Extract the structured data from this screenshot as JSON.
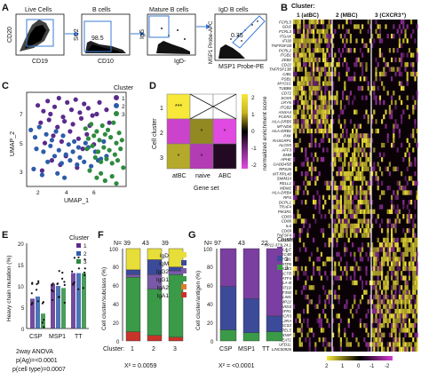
{
  "figure": {
    "panels": {
      "A": "A",
      "B": "B",
      "C": "C",
      "D": "D",
      "E": "E",
      "F": "F",
      "G": "G"
    }
  },
  "panel_a": {
    "gates": [
      {
        "title": "Live Cells",
        "xlabel": "CD19",
        "ylabel": "CD20",
        "value": ""
      },
      {
        "title": "B cells",
        "xlabel": "CD10",
        "ylabel": "SC2",
        "value": "98.5"
      },
      {
        "title": "Mature B cells",
        "xlabel": "IgD-",
        "ylabel": "IgG",
        "value": ""
      },
      {
        "title": "IgD B cells",
        "xlabel": "MSP1 Probe-PE",
        "ylabel": "MSP1 Probe-APC",
        "value": "0.35"
      }
    ]
  },
  "panel_b": {
    "title": "Cluster:",
    "clusters": [
      "1 (atBC)",
      "2 (MBC)",
      "3 (CXCR3⁺)"
    ],
    "genes": [
      "FCRL5",
      "GDI2",
      "FCRL3",
      "ITGAX",
      "IFI30",
      "TNFRSF1B",
      "PCRL2",
      "ITGB1",
      "ZEB2",
      "CD22",
      "TNFRSF13B",
      "CIB1",
      "PSB1",
      "MYO1C",
      "TUBB6",
      "CD72",
      "SOX5",
      "LRYN",
      "ITGB2",
      "ANXA4",
      "FCER2",
      "HLA-DRB5",
      "MT-ND6",
      "HLA-DRB1",
      "PXK",
      "RASGRP1",
      "ALOX5",
      "AFF3",
      "EMB",
      "APHE",
      "GADD45B",
      "RPS26",
      "MT-RPL40",
      "SMIM14",
      "RELL1",
      "MDM2",
      "HLA-DRB4",
      "RPS",
      "DCPL1",
      "TRAF4",
      "PIK3R1",
      "CD83",
      "CD86",
      "IL6",
      "CD69",
      "TNFSF4",
      "CCR7",
      "RP11-373L24.1",
      "HLA-E",
      "CLEC4B",
      "CLPTM1",
      "MT-ATP6",
      "TAS1R3",
      "ACTB",
      "ATF4",
      "HLA-B",
      "AT1D",
      "ZNF350",
      "PDLIM1",
      "PMP22",
      "PARD3",
      "FGFR1",
      "CXCR3",
      "IL2RA",
      "SOCS3",
      "YPEL5",
      "TXNIP",
      "NEAT1",
      "UFD1L",
      "LINC00926"
    ],
    "colorbar_labels": [
      "2",
      "1",
      "0",
      "-1",
      "-2"
    ]
  },
  "panel_c": {
    "xlabel": "UMAP_1",
    "ylabel": "UMAP_2",
    "legend_title": "Cluster",
    "xticks": [
      "2",
      "4",
      "6"
    ],
    "yticks": [
      "3",
      "5",
      "7"
    ],
    "xlim": [
      1.3,
      8.4
    ],
    "ylim": [
      1.8,
      8.3
    ],
    "colors": {
      "1": "#5a2a8c",
      "2": "#2e5ca8",
      "3": "#2e8b3e"
    }
  },
  "panel_d": {
    "ylabel": "Cell cluster",
    "xlabel": "Gene set",
    "colorbar_label": "normalized enrichment score",
    "row_labels": [
      "1",
      "2",
      "3"
    ],
    "col_labels": [
      "atBC",
      "naive",
      "ABC"
    ],
    "colorbar_ticks": [
      "2",
      "1",
      "0",
      "-1",
      "-2"
    ],
    "stars": [
      [
        "***",
        "",
        ""
      ],
      [
        "",
        "*",
        "*"
      ],
      [
        "*",
        "*",
        ""
      ]
    ]
  },
  "panel_e": {
    "ylabel": "Heavy chain mutation (%)",
    "yticks": [
      "0",
      "5",
      "10",
      "15",
      "20"
    ],
    "groups": [
      "CSP",
      "MSP1",
      "TT"
    ],
    "legend_title": "Cluster",
    "legend_items": [
      "1",
      "2",
      "3"
    ],
    "stats": [
      "2way ANOVA",
      "p(Ag)=<0.0001",
      "p(cell type)=0.0007"
    ]
  },
  "panel_f": {
    "ylabel": "Cell cluster/subclass (%)",
    "counts": [
      "N= 39",
      "43",
      "39"
    ],
    "xlabel": "Cluster:",
    "categories": [
      "1",
      "2",
      "3"
    ],
    "yticks": [
      "0",
      "20",
      "40",
      "60",
      "80",
      "100"
    ],
    "legend": [
      "IgD",
      "IgM",
      "IgG2",
      "IgG1",
      "IgA2",
      "IgA1"
    ],
    "stat": "X² = 0.0059"
  },
  "panel_g": {
    "ylabel": "Cell cluster/antigen (%)",
    "counts": [
      "N= 97",
      "43",
      "22"
    ],
    "categories": [
      "CSP",
      "MSP1",
      "TT"
    ],
    "yticks": [
      "0",
      "20",
      "40",
      "60",
      "80",
      "100"
    ],
    "legend_title": "Cluster",
    "legend": [
      "1",
      "2",
      "3"
    ],
    "stat": "X² = <0.0001"
  },
  "chart_data": [
    {
      "type": "scatter",
      "panel": "C",
      "xlabel": "UMAP_1",
      "ylabel": "UMAP_2",
      "xlim": [
        1.3,
        8.4
      ],
      "ylim": [
        1.8,
        8.3
      ],
      "series": [
        {
          "name": "1",
          "x": [
            2.1,
            2.5,
            2.8,
            3.0,
            3.3,
            3.6,
            3.9,
            4.2,
            4.5,
            4.8,
            5.1,
            5.4,
            5.7,
            6.0,
            2.3,
            2.9,
            3.5,
            4.0,
            4.6,
            5.2,
            5.8,
            6.3,
            2.6,
            3.2,
            3.8,
            4.4,
            5.0,
            5.6,
            6.5,
            7.0,
            3.1,
            4.1,
            5.3,
            2.4,
            3.7,
            4.9,
            6.1,
            7.2
          ],
          "y": [
            7.4,
            7.0,
            7.7,
            6.8,
            7.3,
            7.9,
            6.6,
            7.6,
            7.1,
            7.8,
            6.9,
            7.5,
            7.2,
            6.7,
            6.2,
            6.4,
            5.9,
            6.3,
            6.1,
            6.5,
            6.0,
            6.8,
            4.8,
            5.3,
            4.9,
            5.6,
            5.1,
            5.4,
            7.6,
            7.1,
            3.6,
            3.9,
            4.4,
            2.9,
            3.3,
            3.1,
            4.7,
            6.2
          ]
        },
        {
          "name": "2",
          "x": [
            1.6,
            1.9,
            2.2,
            2.7,
            3.1,
            3.4,
            3.9,
            4.3,
            4.7,
            5.0,
            5.5,
            2.0,
            2.5,
            3.0,
            3.6,
            4.1,
            4.6,
            5.1,
            5.7,
            6.2,
            6.6,
            2.8,
            3.3,
            3.8,
            4.4,
            4.9,
            5.4,
            5.9,
            6.4,
            7.0,
            1.8,
            2.4,
            3.5,
            4.0,
            6.8
          ],
          "y": [
            5.7,
            5.2,
            5.9,
            5.4,
            5.0,
            5.6,
            5.3,
            4.7,
            4.9,
            4.5,
            4.8,
            4.4,
            4.2,
            4.6,
            4.3,
            4.0,
            4.2,
            3.8,
            4.5,
            4.2,
            3.7,
            3.5,
            3.9,
            3.4,
            3.6,
            3.3,
            3.5,
            3.2,
            3.6,
            3.9,
            3.0,
            2.6,
            2.7,
            2.4,
            4.9
          ]
        },
        {
          "name": "3",
          "x": [
            5.5,
            5.9,
            6.3,
            6.7,
            7.1,
            7.5,
            7.9,
            5.7,
            6.1,
            6.5,
            6.9,
            7.3,
            7.7,
            8.1,
            5.6,
            6.0,
            6.4,
            6.8,
            7.2,
            7.6,
            8.0,
            6.2,
            6.6,
            7.0,
            7.4,
            7.8,
            5.8,
            6.6,
            7.4,
            8.2,
            6.9,
            7.7,
            6.3
          ],
          "y": [
            5.8,
            6.1,
            5.6,
            6.0,
            5.7,
            6.2,
            5.5,
            5.1,
            5.3,
            5.0,
            5.4,
            5.2,
            4.8,
            5.0,
            4.4,
            4.6,
            4.2,
            4.5,
            4.3,
            4.0,
            4.4,
            3.8,
            3.5,
            3.7,
            3.4,
            3.6,
            2.9,
            2.7,
            2.5,
            3.1,
            2.2,
            2.0,
            2.4
          ]
        }
      ]
    },
    {
      "type": "heatmap",
      "panel": "D",
      "rows": [
        "1",
        "2",
        "3"
      ],
      "columns": [
        "atBC",
        "naive",
        "ABC"
      ],
      "values": [
        [
          2.2,
          0.0,
          0.0
        ],
        [
          -1.8,
          1.3,
          -2.0
        ],
        [
          1.6,
          -1.6,
          -0.3
        ]
      ],
      "crossed_cells": [
        [
          0,
          1
        ],
        [
          0,
          2
        ]
      ],
      "clim": [
        -2,
        2
      ]
    },
    {
      "type": "bar",
      "panel": "E",
      "ylabel": "Heavy chain mutation (%)",
      "ylim": [
        0,
        20
      ],
      "categories": [
        "CSP",
        "MSP1",
        "TT"
      ],
      "series": [
        {
          "name": "1",
          "values": [
            7.0,
            10.5,
            13.0
          ]
        },
        {
          "name": "2",
          "values": [
            7.5,
            10.0,
            13.0
          ]
        },
        {
          "name": "3",
          "values": [
            3.5,
            9.5,
            13.0
          ]
        }
      ]
    },
    {
      "type": "bar",
      "panel": "F",
      "stacked": true,
      "ylabel": "Cell cluster/subclass (%)",
      "ylim": [
        0,
        100
      ],
      "categories": [
        "1",
        "2",
        "3"
      ],
      "series": [
        {
          "name": "IgA1",
          "values": [
            10,
            6,
            4
          ]
        },
        {
          "name": "IgA2",
          "values": [
            0,
            0,
            0
          ]
        },
        {
          "name": "IgG1",
          "values": [
            59,
            50,
            68
          ]
        },
        {
          "name": "IgG2",
          "values": [
            3,
            16,
            4
          ]
        },
        {
          "name": "IgM",
          "values": [
            5,
            16,
            4
          ]
        },
        {
          "name": "IgD",
          "values": [
            23,
            12,
            20
          ]
        }
      ],
      "colors": {
        "IgD": "#e8de3a",
        "IgM": "#3c4a9a",
        "IgG2": "#7a5aa8",
        "IgG1": "#3a9a47",
        "IgA2": "#e07a30",
        "IgA1": "#c8332a"
      }
    },
    {
      "type": "bar",
      "panel": "G",
      "stacked": true,
      "ylabel": "Cell cluster/antigen (%)",
      "ylim": [
        0,
        100
      ],
      "categories": [
        "CSP",
        "MSP1",
        "TT"
      ],
      "series": [
        {
          "name": "3",
          "values": [
            12,
            9,
            10
          ]
        },
        {
          "name": "2",
          "values": [
            47,
            37,
            17
          ]
        },
        {
          "name": "1",
          "values": [
            41,
            54,
            73
          ]
        }
      ],
      "colors": {
        "1": "#7a3fa0",
        "2": "#3c4a9a",
        "3": "#3a9a47"
      }
    }
  ]
}
